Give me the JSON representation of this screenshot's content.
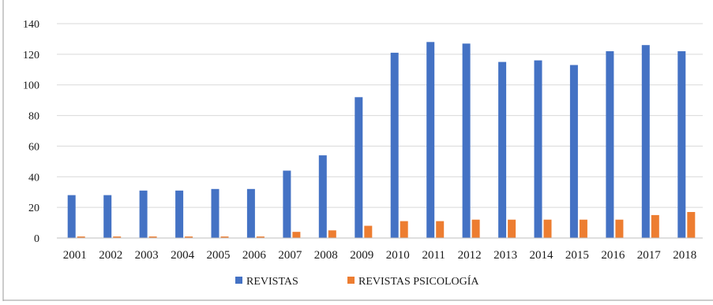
{
  "chart_data": {
    "type": "bar",
    "categories": [
      "2001",
      "2002",
      "2003",
      "2004",
      "2005",
      "2006",
      "2007",
      "2008",
      "2009",
      "2010",
      "2011",
      "2012",
      "2013",
      "2014",
      "2015",
      "2016",
      "2017",
      "2018"
    ],
    "series": [
      {
        "name": "REVISTAS",
        "color": "#4472C4",
        "values": [
          28,
          28,
          31,
          31,
          32,
          32,
          44,
          54,
          92,
          121,
          128,
          127,
          115,
          116,
          113,
          122,
          126,
          122
        ]
      },
      {
        "name": "REVISTAS PSICOLOGÍA",
        "color": "#ED7D31",
        "values": [
          1,
          1,
          1,
          1,
          1,
          1,
          4,
          5,
          8,
          11,
          11,
          12,
          12,
          12,
          12,
          12,
          15,
          17
        ]
      }
    ],
    "yticks": [
      "0",
      "20",
      "40",
      "60",
      "80",
      "100",
      "120",
      "140"
    ],
    "ylim": [
      0,
      140
    ],
    "grid": true,
    "legend_position": "bottom"
  }
}
